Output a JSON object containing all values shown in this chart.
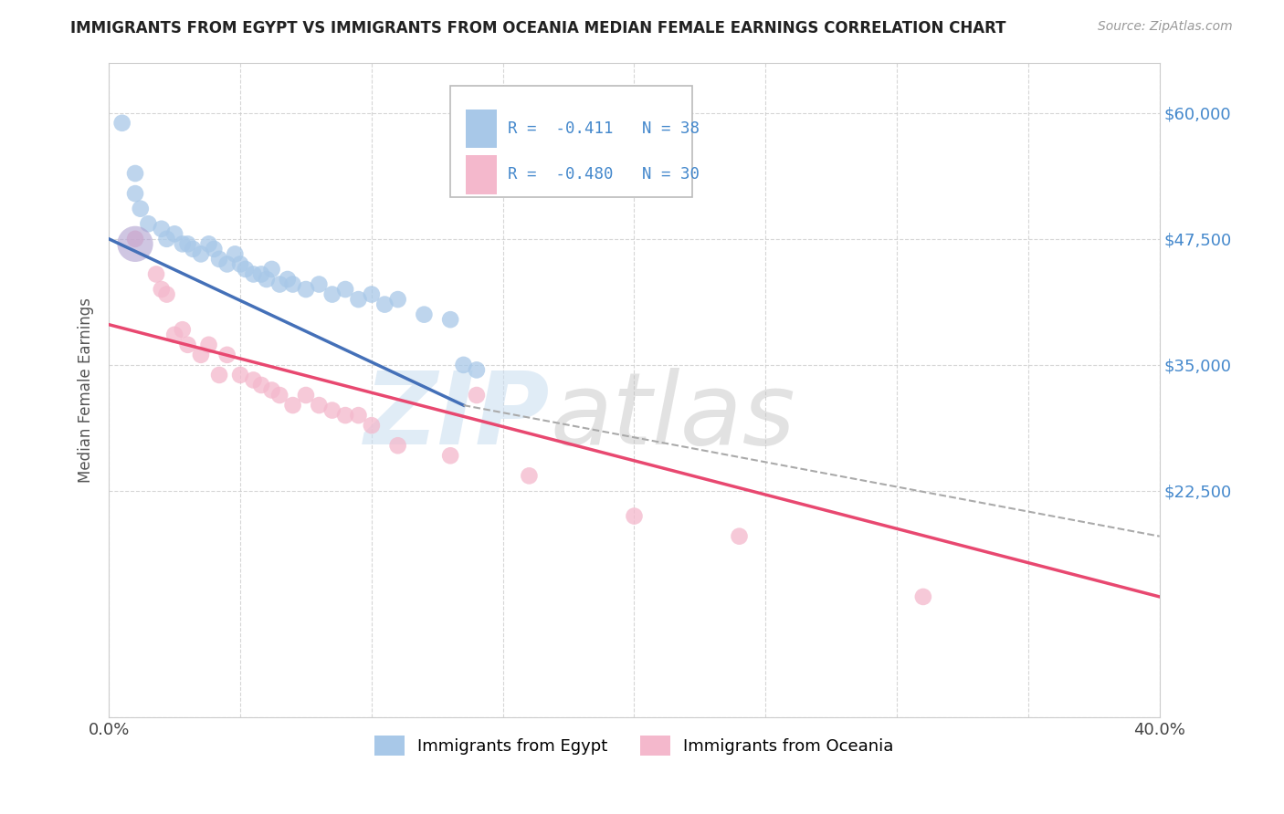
{
  "title": "IMMIGRANTS FROM EGYPT VS IMMIGRANTS FROM OCEANIA MEDIAN FEMALE EARNINGS CORRELATION CHART",
  "source": "Source: ZipAtlas.com",
  "ylabel": "Median Female Earnings",
  "x_min": 0.0,
  "x_max": 0.4,
  "y_min": 0,
  "y_max": 65000,
  "y_ticks": [
    0,
    22500,
    35000,
    47500,
    60000
  ],
  "y_tick_labels": [
    "",
    "$22,500",
    "$35,000",
    "$47,500",
    "$60,000"
  ],
  "x_ticks": [
    0.0,
    0.05,
    0.1,
    0.15,
    0.2,
    0.25,
    0.3,
    0.35,
    0.4
  ],
  "x_tick_labels": [
    "0.0%",
    "",
    "",
    "",
    "",
    "",
    "",
    "",
    "40.0%"
  ],
  "legend_label1": "Immigrants from Egypt",
  "legend_label2": "Immigrants from Oceania",
  "color_egypt": "#a8c8e8",
  "color_oceania": "#f4b8cc",
  "color_egypt_line": "#4470b8",
  "color_oceania_line": "#e84870",
  "color_blue_text": "#4488cc",
  "background_color": "#ffffff",
  "grid_color": "#cccccc",
  "egypt_x": [
    0.005,
    0.01,
    0.01,
    0.012,
    0.015,
    0.02,
    0.022,
    0.025,
    0.028,
    0.03,
    0.032,
    0.035,
    0.038,
    0.04,
    0.042,
    0.045,
    0.048,
    0.05,
    0.052,
    0.055,
    0.058,
    0.06,
    0.062,
    0.065,
    0.068,
    0.07,
    0.075,
    0.08,
    0.085,
    0.09,
    0.095,
    0.1,
    0.105,
    0.11,
    0.12,
    0.13,
    0.135,
    0.14
  ],
  "egypt_y": [
    59000,
    54000,
    52000,
    50500,
    49000,
    48500,
    47500,
    48000,
    47000,
    47000,
    46500,
    46000,
    47000,
    46500,
    45500,
    45000,
    46000,
    45000,
    44500,
    44000,
    44000,
    43500,
    44500,
    43000,
    43500,
    43000,
    42500,
    43000,
    42000,
    42500,
    41500,
    42000,
    41000,
    41500,
    40000,
    39500,
    35000,
    34500
  ],
  "egypt_large_x": [
    0.01
  ],
  "egypt_large_y": [
    47000
  ],
  "oceania_x": [
    0.01,
    0.018,
    0.02,
    0.022,
    0.025,
    0.028,
    0.03,
    0.035,
    0.038,
    0.042,
    0.045,
    0.05,
    0.055,
    0.058,
    0.062,
    0.065,
    0.07,
    0.075,
    0.08,
    0.085,
    0.09,
    0.095,
    0.1,
    0.11,
    0.13,
    0.14,
    0.16,
    0.2,
    0.24,
    0.31
  ],
  "oceania_y": [
    47500,
    44000,
    42500,
    42000,
    38000,
    38500,
    37000,
    36000,
    37000,
    34000,
    36000,
    34000,
    33500,
    33000,
    32500,
    32000,
    31000,
    32000,
    31000,
    30500,
    30000,
    30000,
    29000,
    27000,
    26000,
    32000,
    24000,
    20000,
    18000,
    12000
  ],
  "egypt_line_x0": 0.0,
  "egypt_line_y0": 47500,
  "egypt_line_x1": 0.135,
  "egypt_line_y1": 31000,
  "egypt_line_dashed_x0": 0.135,
  "egypt_line_dashed_y0": 31000,
  "egypt_line_dashed_x1": 0.4,
  "egypt_line_dashed_y1": 18000,
  "oceania_line_x0": 0.0,
  "oceania_line_y0": 39000,
  "oceania_line_x1": 0.4,
  "oceania_line_y1": 12000
}
